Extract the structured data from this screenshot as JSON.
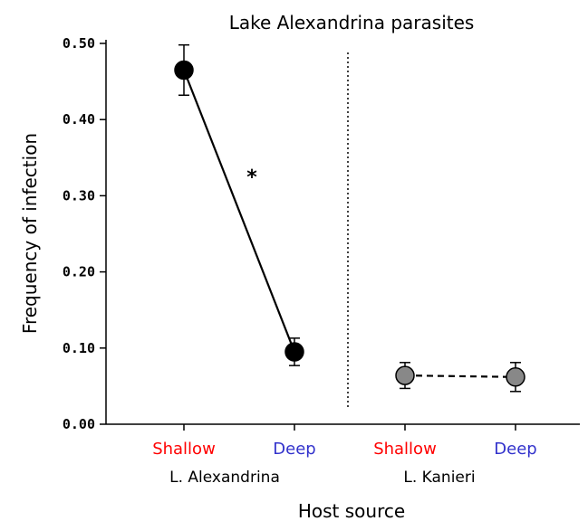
{
  "chart_data": {
    "type": "scatter",
    "title": "Lake Alexandrina parasites",
    "xlabel": "Host source",
    "ylabel": "Frequency of infection",
    "ylim": [
      0,
      0.5
    ],
    "yticks": [
      "0.00",
      "0.10",
      "0.20",
      "0.30",
      "0.40",
      "0.50"
    ],
    "grid": false,
    "categories": [
      {
        "label": "Shallow",
        "color": "#ff0000"
      },
      {
        "label": "Deep",
        "color": "#3333cc"
      },
      {
        "label": "Shallow",
        "color": "#ff0000"
      },
      {
        "label": "Deep",
        "color": "#3333cc"
      }
    ],
    "groups": [
      "L. Alexandrina",
      "L. Kanieri"
    ],
    "series": [
      {
        "group": "L. Alexandrina",
        "points": [
          {
            "category": 0,
            "y": 0.465,
            "err_low": 0.432,
            "err_high": 0.498
          },
          {
            "category": 1,
            "y": 0.095,
            "err_low": 0.077,
            "err_high": 0.113
          }
        ],
        "line_style": "solid",
        "marker_color": "#000000"
      },
      {
        "group": "L. Kanieri",
        "points": [
          {
            "category": 2,
            "y": 0.064,
            "err_low": 0.047,
            "err_high": 0.081
          },
          {
            "category": 3,
            "y": 0.062,
            "err_low": 0.043,
            "err_high": 0.081
          }
        ],
        "line_style": "dashed",
        "marker_color": "#888888"
      }
    ],
    "annotations": [
      {
        "text": "*"
      }
    ],
    "divider": "dotted"
  }
}
